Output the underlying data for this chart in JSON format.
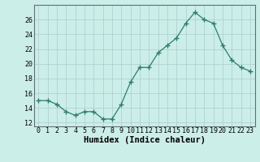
{
  "x": [
    0,
    1,
    2,
    3,
    4,
    5,
    6,
    7,
    8,
    9,
    10,
    11,
    12,
    13,
    14,
    15,
    16,
    17,
    18,
    19,
    20,
    21,
    22,
    23
  ],
  "y": [
    15.0,
    15.0,
    14.5,
    13.5,
    13.0,
    13.5,
    13.5,
    12.5,
    12.5,
    14.5,
    17.5,
    19.5,
    19.5,
    21.5,
    22.5,
    23.5,
    25.5,
    27.0,
    26.0,
    25.5,
    22.5,
    20.5,
    19.5,
    19.0
  ],
  "xlabel": "Humidex (Indice chaleur)",
  "xlim": [
    -0.5,
    23.5
  ],
  "ylim": [
    11.5,
    28.0
  ],
  "yticks": [
    12,
    14,
    16,
    18,
    20,
    22,
    24,
    26
  ],
  "xtick_labels": [
    "0",
    "1",
    "2",
    "3",
    "4",
    "5",
    "6",
    "7",
    "8",
    "9",
    "10",
    "11",
    "12",
    "13",
    "14",
    "15",
    "16",
    "17",
    "18",
    "19",
    "20",
    "21",
    "22",
    "23"
  ],
  "line_color": "#2d7d6d",
  "marker": "+",
  "marker_size": 4.5,
  "bg_color": "#cceee8",
  "grid_color": "#aacccc",
  "tick_fontsize": 6.0,
  "xlabel_fontsize": 7.5
}
